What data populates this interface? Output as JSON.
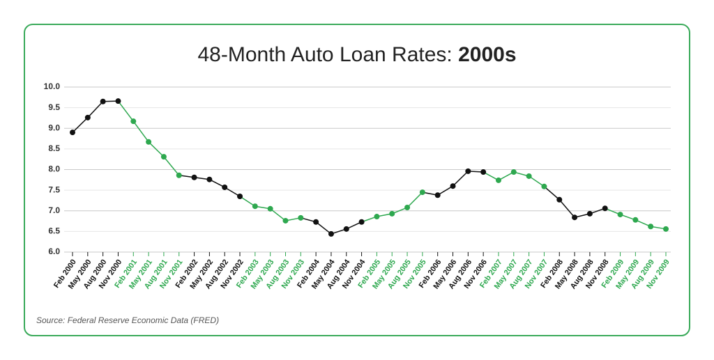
{
  "chart_data": {
    "type": "line",
    "title": "48-Month Auto Loan Rates:",
    "title_bold": "2000s",
    "source": "Source: Federal Reserve Economic Data (FRED)",
    "categories": [
      "Feb 2000",
      "May 2000",
      "Aug 2000",
      "Nov 2000",
      "Feb 2001",
      "May 2001",
      "Aug 2001",
      "Nov 2001",
      "Feb 2002",
      "May 2002",
      "Aug 2002",
      "Nov 2002",
      "Feb 2003",
      "May 2003",
      "Aug 2003",
      "Nov 2003",
      "Feb 2004",
      "May 2004",
      "Aug 2004",
      "Nov 2004",
      "Feb 2005",
      "May 2005",
      "Aug 2005",
      "Nov 2005",
      "Feb 2006",
      "May 2006",
      "Aug 2006",
      "Nov 2006",
      "Feb 2007",
      "May 2007",
      "Aug 2007",
      "Nov 2007",
      "Feb 2008",
      "May 2008",
      "Aug 2008",
      "Nov 2008",
      "Feb 2009",
      "May 2009",
      "Aug 2009",
      "Nov 2009"
    ],
    "values": [
      8.9,
      9.26,
      9.65,
      9.66,
      9.17,
      8.67,
      8.31,
      7.86,
      7.81,
      7.76,
      7.57,
      7.35,
      7.11,
      7.05,
      6.76,
      6.83,
      6.73,
      6.44,
      6.56,
      6.73,
      6.86,
      6.93,
      7.08,
      7.45,
      7.38,
      7.6,
      7.96,
      7.94,
      7.74,
      7.94,
      7.84,
      7.59,
      7.27,
      6.84,
      6.93,
      7.06,
      6.91,
      6.78,
      6.62,
      6.56
    ],
    "point_colors": [
      "#111111",
      "#111111",
      "#111111",
      "#111111",
      "#2ea84f",
      "#2ea84f",
      "#2ea84f",
      "#2ea84f",
      "#111111",
      "#111111",
      "#111111",
      "#111111",
      "#2ea84f",
      "#2ea84f",
      "#2ea84f",
      "#2ea84f",
      "#111111",
      "#111111",
      "#111111",
      "#111111",
      "#2ea84f",
      "#2ea84f",
      "#2ea84f",
      "#2ea84f",
      "#111111",
      "#111111",
      "#111111",
      "#111111",
      "#2ea84f",
      "#2ea84f",
      "#2ea84f",
      "#2ea84f",
      "#111111",
      "#111111",
      "#111111",
      "#111111",
      "#2ea84f",
      "#2ea84f",
      "#2ea84f",
      "#2ea84f"
    ],
    "ylim": [
      6,
      10
    ],
    "yticks": [
      {
        "value": 6,
        "label": "6.0"
      },
      6.5,
      {
        "value": 7,
        "label": "7.0"
      },
      7.5,
      {
        "value": 8,
        "label": "8.0"
      },
      8.5,
      {
        "value": 9,
        "label": "9.0"
      },
      9.5,
      {
        "value": 10,
        "label": "10.0"
      }
    ],
    "grid": true
  }
}
